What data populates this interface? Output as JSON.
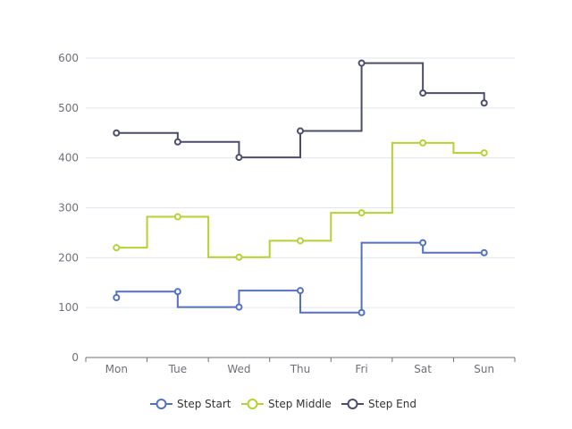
{
  "chart_data": {
    "type": "line",
    "step_chart": true,
    "categories": [
      "Mon",
      "Tue",
      "Wed",
      "Thu",
      "Fri",
      "Sat",
      "Sun"
    ],
    "ylim": [
      0,
      600
    ],
    "yticks": [
      0,
      100,
      200,
      300,
      400,
      500,
      600
    ],
    "grid": true,
    "legend_position": "bottom-center",
    "series": [
      {
        "name": "Step Start",
        "step": "start",
        "color": "#5470c6",
        "values": [
          120,
          132,
          101,
          134,
          90,
          230,
          210
        ]
      },
      {
        "name": "Step Middle",
        "step": "middle",
        "color": "#b4d332",
        "values": [
          220,
          282,
          201,
          234,
          290,
          430,
          410
        ]
      },
      {
        "name": "Step End",
        "step": "end",
        "color": "#4b4d6b",
        "values": [
          450,
          432,
          401,
          454,
          590,
          530,
          510
        ]
      }
    ]
  }
}
